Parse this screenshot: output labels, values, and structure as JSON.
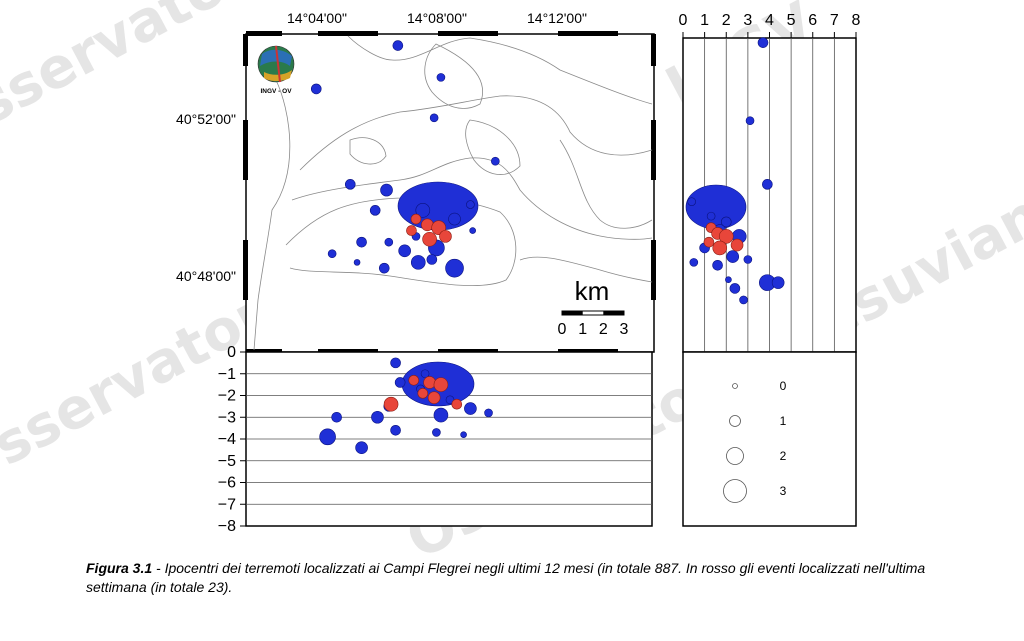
{
  "watermark": "Osservatorio Vesuviano - INGV",
  "logo": {
    "text": "INGV - OV"
  },
  "map": {
    "lon_ticks": [
      "14°04'00\"",
      "14°08'00\"",
      "14°12'00\""
    ],
    "lat_ticks": [
      "40°52'00\"",
      "40°48'00\""
    ],
    "scale": {
      "unit": "km",
      "ticks": [
        "0",
        "1",
        "2",
        "3"
      ]
    }
  },
  "caption": {
    "label": "Figura 3.1",
    "text": " - Ipocentri dei terremoti localizzati ai Campi Flegrei negli ultimi 12 mesi (in totale 887. In rosso gli eventi localizzati nell'ultima settimana (in totale 23)."
  },
  "chart_data": [
    {
      "type": "scatter",
      "view": "map",
      "title": "",
      "xlabel": "",
      "ylabel": "",
      "xlim": [
        14.04,
        14.22
      ],
      "ylim": [
        40.78,
        40.89
      ],
      "grid": false,
      "series": [
        {
          "color": "#1f2fd6",
          "points": [
            [
              14.107,
              40.886
            ],
            [
              14.126,
              40.875
            ],
            [
              14.071,
              40.871
            ],
            [
              14.123,
              40.861
            ],
            [
              14.15,
              40.846
            ],
            [
              14.086,
              40.838
            ],
            [
              14.102,
              40.836
            ],
            [
              14.118,
              40.829
            ],
            [
              14.097,
              40.829
            ],
            [
              14.132,
              40.826
            ],
            [
              14.139,
              40.831
            ],
            [
              14.091,
              40.818
            ],
            [
              14.103,
              40.818
            ],
            [
              14.14,
              40.822
            ],
            [
              14.124,
              40.816
            ],
            [
              14.11,
              40.815
            ],
            [
              14.122,
              40.812
            ],
            [
              14.078,
              40.814
            ],
            [
              14.089,
              40.811
            ],
            [
              14.116,
              40.811
            ],
            [
              14.101,
              40.809
            ],
            [
              14.132,
              40.809
            ],
            [
              14.115,
              40.82
            ]
          ]
        },
        {
          "color": "#e8463a",
          "points": [
            [
              14.115,
              40.826
            ],
            [
              14.12,
              40.824
            ],
            [
              14.125,
              40.823
            ],
            [
              14.113,
              40.822
            ],
            [
              14.128,
              40.82
            ],
            [
              14.121,
              40.819
            ]
          ]
        }
      ]
    },
    {
      "type": "scatter",
      "view": "depth-vs-longitude",
      "title": "",
      "xlabel": "",
      "ylabel": "",
      "ylim": [
        -8,
        0
      ],
      "yticks": [
        "0",
        "−1",
        "−2",
        "−3",
        "−4",
        "−5",
        "−6",
        "−7",
        "−8"
      ],
      "grid": true,
      "series": [
        {
          "color": "#1f2fd6",
          "points": [
            [
              14.106,
              -0.5
            ],
            [
              14.119,
              -1.0
            ],
            [
              14.108,
              -1.4
            ],
            [
              14.117,
              -1.7
            ],
            [
              14.13,
              -2.2
            ],
            [
              14.103,
              -2.5
            ],
            [
              14.139,
              -2.6
            ],
            [
              14.126,
              -2.9
            ],
            [
              14.08,
              -3.0
            ],
            [
              14.098,
              -3.0
            ],
            [
              14.147,
              -2.8
            ],
            [
              14.106,
              -3.6
            ],
            [
              14.124,
              -3.7
            ],
            [
              14.136,
              -3.8
            ],
            [
              14.076,
              -3.9
            ],
            [
              14.091,
              -4.4
            ]
          ]
        },
        {
          "color": "#e8463a",
          "points": [
            [
              14.114,
              -1.3
            ],
            [
              14.121,
              -1.4
            ],
            [
              14.126,
              -1.5
            ],
            [
              14.118,
              -1.9
            ],
            [
              14.123,
              -2.1
            ],
            [
              14.104,
              -2.4
            ],
            [
              14.133,
              -2.4
            ]
          ]
        }
      ]
    },
    {
      "type": "scatter",
      "view": "depth-vs-latitude",
      "title": "",
      "xlabel": "",
      "ylabel": "",
      "xlim": [
        0,
        8
      ],
      "xticks": [
        "0",
        "1",
        "2",
        "3",
        "4",
        "5",
        "6",
        "7",
        "8"
      ],
      "grid": true,
      "series": [
        {
          "color": "#1f2fd6",
          "points": [
            [
              3.7,
              40.887
            ],
            [
              3.1,
              40.86
            ],
            [
              3.9,
              40.838
            ],
            [
              0.4,
              40.832
            ],
            [
              1.3,
              40.827
            ],
            [
              2.0,
              40.825
            ],
            [
              1.7,
              40.822
            ],
            [
              2.6,
              40.82
            ],
            [
              1.0,
              40.816
            ],
            [
              2.3,
              40.813
            ],
            [
              3.0,
              40.812
            ],
            [
              1.6,
              40.81
            ],
            [
              0.5,
              40.811
            ],
            [
              2.1,
              40.805
            ],
            [
              3.9,
              40.804
            ],
            [
              4.4,
              40.804
            ],
            [
              2.4,
              40.802
            ],
            [
              2.8,
              40.798
            ]
          ]
        },
        {
          "color": "#e8463a",
          "points": [
            [
              1.3,
              40.823
            ],
            [
              1.6,
              40.821
            ],
            [
              2.0,
              40.82
            ],
            [
              1.2,
              40.818
            ],
            [
              2.5,
              40.817
            ],
            [
              1.7,
              40.816
            ]
          ]
        }
      ]
    },
    {
      "type": "scatter",
      "view": "magnitude-legend",
      "title": "",
      "magnitudes": [
        "0",
        "1",
        "2",
        "3"
      ]
    }
  ]
}
